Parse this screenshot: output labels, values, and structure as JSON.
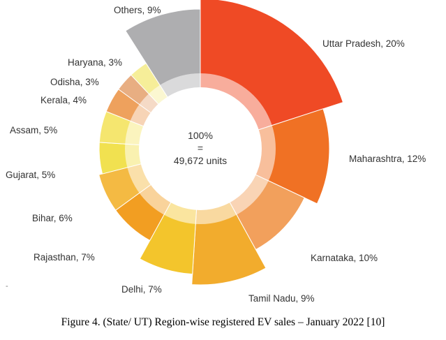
{
  "chart_data": {
    "type": "pie",
    "variant": "donut",
    "center_lines": [
      "100%",
      "=",
      "49,672 units"
    ],
    "slices": [
      {
        "label": "Uttar Pradesh, 20%",
        "value": 20,
        "color": "#EF4A25"
      },
      {
        "label": "Maharashtra, 12%",
        "value": 12,
        "color": "#F07124"
      },
      {
        "label": "Karnataka, 10%",
        "value": 10,
        "color": "#F2A05C"
      },
      {
        "label": "Tamil Nadu, 9%",
        "value": 9,
        "color": "#F2AC2D"
      },
      {
        "label": "Delhi, 7%",
        "value": 7,
        "color": "#F3C52C"
      },
      {
        "label": "Rajasthan, 7%",
        "value": 7,
        "color": "#F29E22"
      },
      {
        "label": "Bihar, 6%",
        "value": 6,
        "color": "#F4BA43"
      },
      {
        "label": "Gujarat, 5%",
        "value": 5,
        "color": "#F1E150"
      },
      {
        "label": "Assam, 5%",
        "value": 5,
        "color": "#F5E66F"
      },
      {
        "label": "Kerala, 4%",
        "value": 4,
        "color": "#EEA15D"
      },
      {
        "label": "Odisha, 3%",
        "value": 3,
        "color": "#E8AE82"
      },
      {
        "label": "Haryana, 3%",
        "value": 3,
        "color": "#F6EE99"
      },
      {
        "label": "Others, 9%",
        "value": 9,
        "color": "#AEAEB0"
      }
    ]
  },
  "caption": "Figure 4. (State/ UT) Region-wise registered EV sales – January 2022 [10]",
  "side_mark": "-"
}
